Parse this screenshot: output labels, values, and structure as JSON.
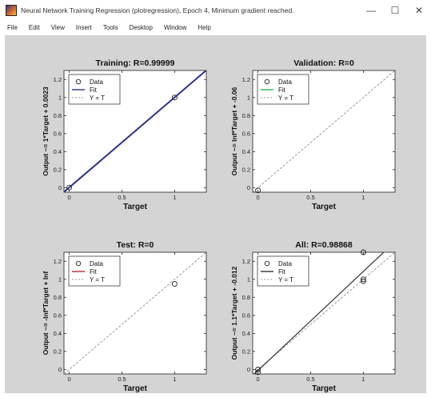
{
  "window": {
    "title": "Neural Network Training Regression (plotregression), Epoch 4, Minimum gradient reached.",
    "minimize": "—",
    "maximize": "☐",
    "close": "✕"
  },
  "menu": [
    "File",
    "Edit",
    "View",
    "Insert",
    "Tools",
    "Desktop",
    "Window",
    "Help"
  ],
  "colors": {
    "figure_bg": "#d4d4d4",
    "axes_bg": "#ffffff",
    "training_fit": "#2e3192",
    "validation_fit": "#2db34a",
    "test_fit": "#c0262d",
    "all_fit": "#333333",
    "identity": "#999999"
  },
  "chart_data": [
    {
      "type": "scatter",
      "title": "Training: R=0.99999",
      "xlabel": "Target",
      "ylabel": "Output ~= 1*Target + 0.0023",
      "xlim": [
        -0.05,
        1.3
      ],
      "ylim": [
        -0.05,
        1.3
      ],
      "xticks": [
        0,
        0.5,
        1
      ],
      "xtick_labels": [
        "0",
        "0.5",
        "1"
      ],
      "yticks": [
        0,
        0.2,
        0.4,
        0.6,
        0.8,
        1,
        1.2
      ],
      "ytick_labels": [
        "0",
        "0.2",
        "0.4",
        "0.6",
        "0.8",
        "1",
        "1.2"
      ],
      "points": [
        [
          0,
          0.002
        ],
        [
          1,
          1.0
        ]
      ],
      "fit": {
        "slope": 1,
        "intercept": 0.0023
      },
      "fit_color": "#2e3192",
      "legend": [
        "Data",
        "Fit",
        "Y = T"
      ],
      "legend_position": "top-left",
      "grid": false
    },
    {
      "type": "scatter",
      "title": "Validation: R=0",
      "xlabel": "Target",
      "ylabel": "Output ~= Inf*Target + -0.06",
      "xlim": [
        -0.05,
        1.3
      ],
      "ylim": [
        -0.05,
        1.3
      ],
      "xticks": [
        0,
        0.5,
        1
      ],
      "xtick_labels": [
        "0",
        "0.5",
        "1"
      ],
      "yticks": [
        0,
        0.2,
        0.4,
        0.6,
        0.8,
        1,
        1.2
      ],
      "ytick_labels": [
        "0",
        "0.2",
        "0.4",
        "0.6",
        "0.8",
        "1",
        "1.2"
      ],
      "points": [
        [
          0,
          -0.03
        ]
      ],
      "fit": null,
      "fit_color": "#2db34a",
      "legend": [
        "Data",
        "Fit",
        "Y = T"
      ],
      "legend_position": "top-left",
      "grid": false
    },
    {
      "type": "scatter",
      "title": "Test: R=0",
      "xlabel": "Target",
      "ylabel": "Output ~= -Inf*Target + Inf",
      "xlim": [
        -0.05,
        1.3
      ],
      "ylim": [
        -0.05,
        1.3
      ],
      "xticks": [
        0,
        0.5,
        1
      ],
      "xtick_labels": [
        "0",
        "0.5",
        "1"
      ],
      "yticks": [
        0,
        0.2,
        0.4,
        0.6,
        0.8,
        1,
        1.2
      ],
      "ytick_labels": [
        "0",
        "0.2",
        "0.4",
        "0.6",
        "0.8",
        "1",
        "1.2"
      ],
      "points": [
        [
          1,
          0.95
        ]
      ],
      "fit": null,
      "fit_color": "#c0262d",
      "legend": [
        "Data",
        "Fit",
        "Y = T"
      ],
      "legend_position": "top-left",
      "grid": false
    },
    {
      "type": "scatter",
      "title": "All: R=0.98868",
      "xlabel": "Target",
      "ylabel": "Output ~= 1.1*Target + -0.012",
      "xlim": [
        -0.05,
        1.3
      ],
      "ylim": [
        -0.05,
        1.3
      ],
      "xticks": [
        0,
        0.5,
        1
      ],
      "xtick_labels": [
        "0",
        "0.5",
        "1"
      ],
      "yticks": [
        0,
        0.2,
        0.4,
        0.6,
        0.8,
        1,
        1.2
      ],
      "ytick_labels": [
        "0",
        "0.2",
        "0.4",
        "0.6",
        "0.8",
        "1",
        "1.2"
      ],
      "points": [
        [
          0,
          0.0
        ],
        [
          0,
          -0.03
        ],
        [
          1,
          0.98
        ],
        [
          1,
          1.0
        ],
        [
          1,
          1.3
        ]
      ],
      "fit": {
        "slope": 1.1,
        "intercept": -0.012
      },
      "fit_color": "#333333",
      "legend": [
        "Data",
        "Fit",
        "Y = T"
      ],
      "legend_position": "top-left",
      "grid": false
    }
  ]
}
